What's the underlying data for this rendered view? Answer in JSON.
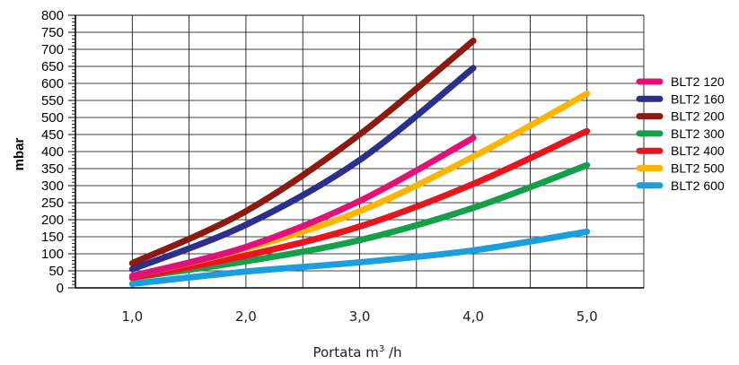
{
  "chart_data": {
    "type": "line",
    "xlabel": "Portata m",
    "xlabel_sup": "3",
    "xlabel_unit": " /h",
    "ylabel": "mbar",
    "xlim": [
      0.5,
      5.5
    ],
    "ylim": [
      0,
      800
    ],
    "x_ticks": [
      1.0,
      2.0,
      3.0,
      4.0,
      5.0
    ],
    "x_tick_labels": [
      "1,0",
      "2,0",
      "3,0",
      "4,0",
      "5,0"
    ],
    "y_ticks": [
      0,
      50,
      100,
      150,
      200,
      250,
      300,
      350,
      400,
      450,
      500,
      550,
      600,
      650,
      700,
      750,
      800
    ],
    "y_tick_labels": [
      "0",
      "50",
      "100",
      "150",
      "200",
      "250",
      "300",
      "350",
      "400",
      "450",
      "500",
      "550",
      "600",
      "650",
      "700",
      "750",
      "800"
    ],
    "grid": true,
    "legend_position": "right",
    "series": [
      {
        "name": "BLT2 120",
        "color": "#e4107a",
        "x": [
          1.0,
          2.0,
          3.0,
          4.0
        ],
        "values": [
          35,
          120,
          255,
          440
        ]
      },
      {
        "name": "BLT2 160",
        "color": "#2e2e8c",
        "x": [
          1.0,
          2.0,
          3.0,
          4.0
        ],
        "values": [
          55,
          185,
          375,
          645
        ]
      },
      {
        "name": "BLT2 200",
        "color": "#8b1a10",
        "x": [
          1.0,
          2.0,
          3.0,
          4.0
        ],
        "values": [
          72,
          225,
          450,
          725
        ]
      },
      {
        "name": "BLT2 300",
        "color": "#14a04b",
        "x": [
          1.0,
          2.0,
          3.0,
          4.0,
          5.0
        ],
        "values": [
          30,
          78,
          140,
          235,
          360
        ]
      },
      {
        "name": "BLT2 400",
        "color": "#e8141e",
        "x": [
          1.0,
          2.0,
          3.0,
          4.0,
          5.0
        ],
        "values": [
          30,
          95,
          180,
          305,
          460
        ]
      },
      {
        "name": "BLT2 500",
        "color": "#ffb400",
        "x": [
          1.0,
          2.0,
          3.0,
          4.0,
          5.0
        ],
        "values": [
          35,
          115,
          225,
          385,
          570
        ]
      },
      {
        "name": "BLT2 600",
        "color": "#1b9ee0",
        "x": [
          1.0,
          2.0,
          3.0,
          4.0,
          5.0
        ],
        "values": [
          12,
          48,
          75,
          110,
          165
        ]
      }
    ]
  }
}
